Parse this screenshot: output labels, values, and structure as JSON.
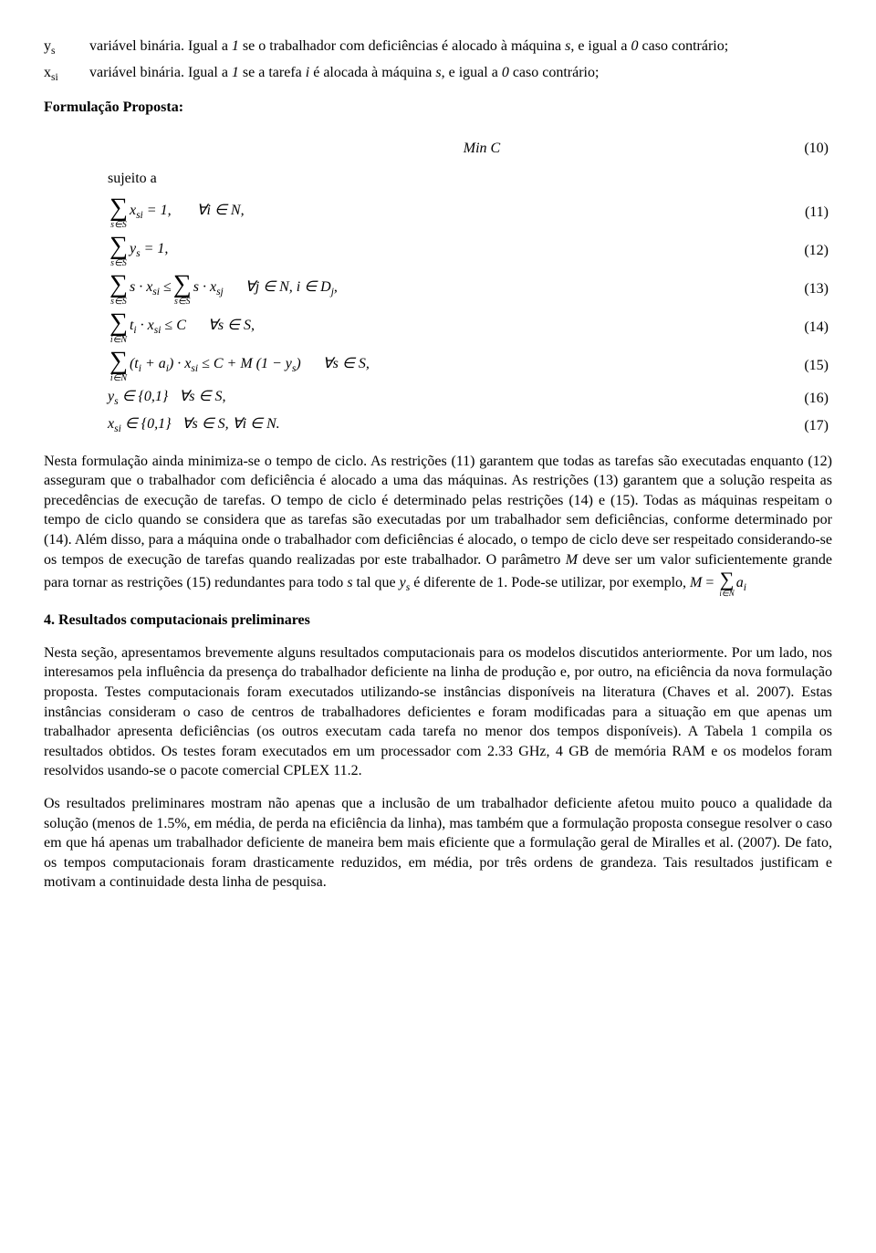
{
  "defs": {
    "ys_sym_html": "y<span class='sub'>s</span>",
    "ys_text_html": "variável binária. Igual a <span class='ital'>1</span> se o trabalhador com deficiências é alocado à máquina <span class='ital'>s</span>, e igual a <span class='ital'>0</span> caso contrário;",
    "xsi_sym_html": "x<span class='sub'>si</span>",
    "xsi_text_html": "variável binária. Igual a <span class='ital'>1</span> se a tarefa <span class='ital'>i</span> é alocada à máquina <span class='ital'>s</span>, e igual a <span class='ital'>0</span> caso contrário;"
  },
  "labels": {
    "formulacao": "Formulação Proposta:",
    "sujeito": "sujeito a",
    "section4": "4. Resultados computacionais preliminares"
  },
  "eqs": {
    "e10_body": "Min C",
    "e10_num": "(10)",
    "e11_num": "(11)",
    "e12_num": "(12)",
    "e13_num": "(13)",
    "e14_num": "(14)",
    "e15_num": "(15)",
    "e16_num": "(16)",
    "e17_num": "(17)"
  },
  "para1_html": "Nesta formulação ainda minimiza-se o tempo de ciclo. As restrições (11) garantem que todas as tarefas são executadas enquanto (12) asseguram que o trabalhador com deficiência é alocado a uma das máquinas. As restrições (13) garantem que a solução respeita as precedências de execução de tarefas. O tempo de ciclo é determinado pelas restrições (14) e (15). Todas as máquinas respeitam o tempo de ciclo quando se considera que as tarefas são executadas por um trabalhador sem deficiências, conforme determinado por (14). Além disso, para a máquina onde o trabalhador com deficiências é alocado, o tempo de ciclo deve ser respeitado considerando-se os tempos de execução de tarefas quando realizadas por este trabalhador. O parâmetro <span class='ital'>M</span> deve ser um valor suficientemente grande para tornar as restrições (15) redundantes para todo <span class='ital'>s</span> tal que <span class='ital'>y<span class='sub'>s</span></span> é diferente de 1. Pode-se utilizar, por exemplo, <span class='ital'>M</span> = <span class='inline-sigma'><span class='sigma-sym'>∑</span><span class='sigma-sub'>i∈N</span></span><span class='ital'>a<span class='sub'>i</span></span>",
  "para2": "Nesta seção, apresentamos brevemente alguns resultados computacionais para os modelos discutidos anteriormente. Por um lado, nos interesamos pela influência da presença do trabalhador deficiente na linha de produção e, por outro, na eficiência da nova formulação proposta. Testes computacionais foram executados utilizando-se instâncias disponíveis na literatura (Chaves et al. 2007). Estas instâncias consideram o caso de centros de trabalhadores deficientes e foram modificadas para a situação em que apenas um trabalhador apresenta deficiências (os outros executam cada tarefa no menor dos tempos disponíveis). A Tabela 1 compila os resultados obtidos. Os testes foram executados em um processador com 2.33 GHz, 4 GB de memória RAM e os modelos foram resolvidos usando-se o pacote comercial CPLEX 11.2.",
  "para3": "Os resultados preliminares mostram não apenas que a inclusão de um trabalhador deficiente afetou muito pouco a qualidade da solução (menos de 1.5%, em média, de perda na eficiência da linha), mas também que a formulação proposta consegue resolver o caso em que há apenas um trabalhador deficiente de maneira bem mais eficiente que a formulação geral de Miralles et al. (2007). De fato, os tempos computacionais foram drasticamente reduzidos, em média, por três ordens de grandeza. Tais resultados justificam e motivam a continuidade desta linha de pesquisa."
}
